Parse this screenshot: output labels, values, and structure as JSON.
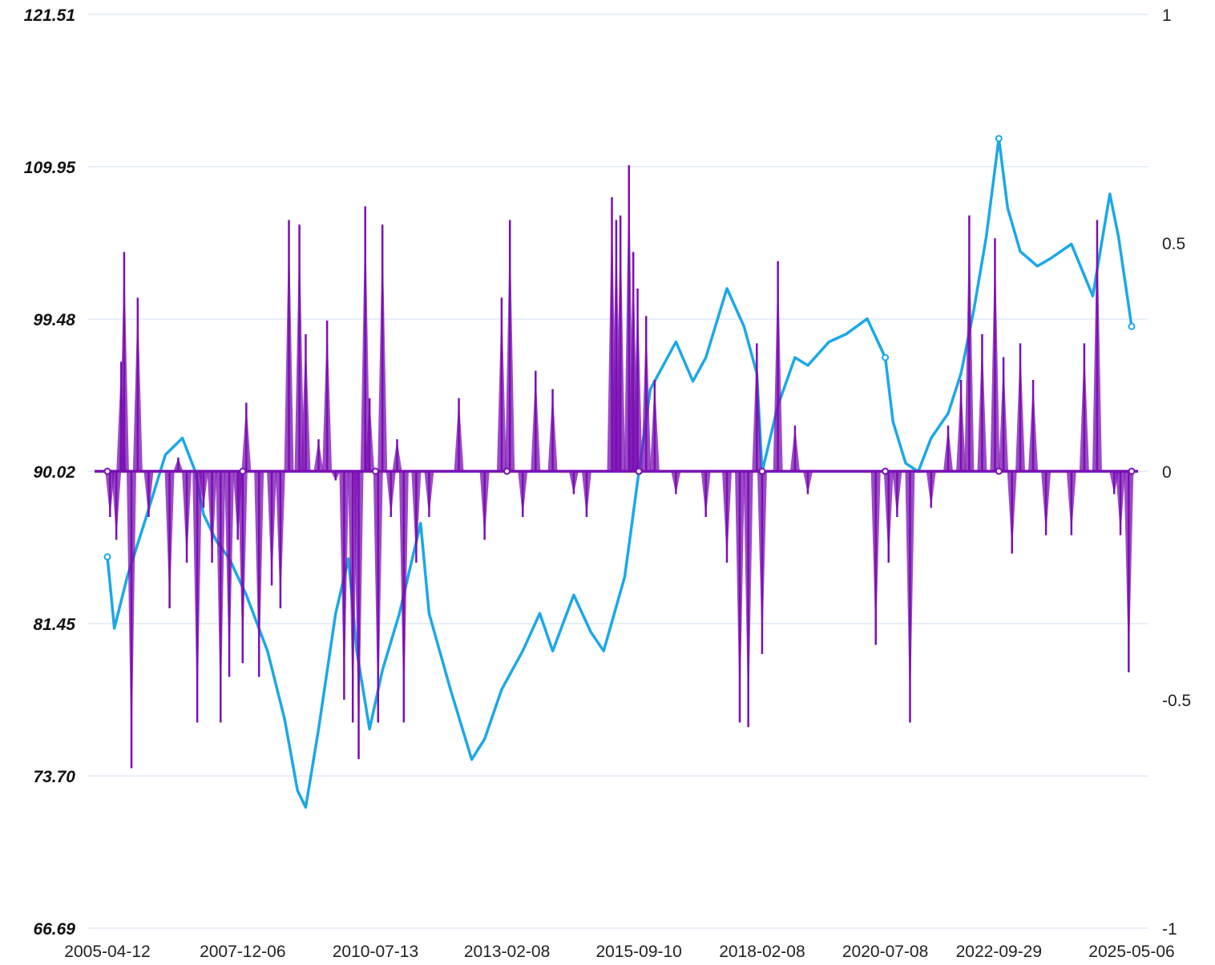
{
  "chart_data": {
    "type": "line",
    "title": "",
    "xlabel": "",
    "ylabel": "",
    "left_axis": {
      "ticks": [
        "121.51",
        "109.95",
        "99.48",
        "90.02",
        "81.45",
        "73.70",
        "66.69"
      ],
      "tick_values": [
        121.51,
        109.95,
        99.48,
        90.02,
        81.45,
        73.7,
        66.69
      ],
      "ylim": [
        66.69,
        121.51
      ],
      "scale": "log"
    },
    "right_axis": {
      "ticks": [
        "1",
        "0.5",
        "0",
        "-0.5",
        "-1"
      ],
      "tick_values": [
        1,
        0.5,
        0,
        -0.5,
        -1
      ],
      "ylim": [
        -1,
        1
      ]
    },
    "x_axis": {
      "ticks": [
        "2005-04-12",
        "2007-12-06",
        "2010-07-13",
        "2013-02-08",
        "2015-09-10",
        "2018-02-08",
        "2020-07-08",
        "2022-09-29",
        "2025-05-06"
      ],
      "range": [
        "2005-04-12",
        "2025-05-06"
      ]
    },
    "grid": true,
    "legend": "none",
    "series": [
      {
        "axis": "left",
        "style": "line",
        "color": "#1ba8e8",
        "points": [
          [
            "2005-04-12",
            85.1
          ],
          [
            "2005-06-01",
            81.2
          ],
          [
            "2005-09-01",
            84.0
          ],
          [
            "2006-01-01",
            87.0
          ],
          [
            "2006-06-01",
            91.0
          ],
          [
            "2006-10-01",
            92.0
          ],
          [
            "2007-01-01",
            90.0
          ],
          [
            "2007-03-01",
            87.5
          ],
          [
            "2007-06-01",
            86.0
          ],
          [
            "2007-09-01",
            85.0
          ],
          [
            "2008-01-01",
            83.0
          ],
          [
            "2008-06-01",
            80.0
          ],
          [
            "2008-10-01",
            76.5
          ],
          [
            "2009-01-01",
            73.0
          ],
          [
            "2009-03-01",
            72.2
          ],
          [
            "2009-06-01",
            76.0
          ],
          [
            "2009-10-01",
            82.0
          ],
          [
            "2010-01-01",
            85.0
          ],
          [
            "2010-03-01",
            80.0
          ],
          [
            "2010-06-01",
            76.0
          ],
          [
            "2010-09-01",
            79.0
          ],
          [
            "2011-01-01",
            82.0
          ],
          [
            "2011-06-01",
            87.0
          ],
          [
            "2011-08-01",
            82.0
          ],
          [
            "2012-01-01",
            78.0
          ],
          [
            "2012-06-01",
            74.5
          ],
          [
            "2012-09-01",
            75.5
          ],
          [
            "2013-01-01",
            78.0
          ],
          [
            "2013-06-01",
            80.0
          ],
          [
            "2013-10-01",
            82.0
          ],
          [
            "2014-01-01",
            80.0
          ],
          [
            "2014-06-01",
            83.0
          ],
          [
            "2014-10-01",
            81.0
          ],
          [
            "2015-01-01",
            80.0
          ],
          [
            "2015-06-01",
            84.0
          ],
          [
            "2015-09-10",
            90.0
          ],
          [
            "2015-12-01",
            95.0
          ],
          [
            "2016-06-01",
            98.0
          ],
          [
            "2016-10-01",
            95.5
          ],
          [
            "2017-01-01",
            97.0
          ],
          [
            "2017-06-01",
            101.5
          ],
          [
            "2017-10-01",
            99.0
          ],
          [
            "2018-01-01",
            96.0
          ],
          [
            "2018-02-08",
            90.0
          ],
          [
            "2018-06-01",
            94.0
          ],
          [
            "2018-10-01",
            97.0
          ],
          [
            "2019-01-01",
            96.5
          ],
          [
            "2019-06-01",
            98.0
          ],
          [
            "2019-10-01",
            98.5
          ],
          [
            "2020-03-01",
            99.5
          ],
          [
            "2020-07-08",
            97.0
          ],
          [
            "2020-09-01",
            93.0
          ],
          [
            "2020-12-01",
            90.5
          ],
          [
            "2021-03-01",
            90.0
          ],
          [
            "2021-06-01",
            92.0
          ],
          [
            "2021-10-01",
            93.5
          ],
          [
            "2022-01-01",
            96.0
          ],
          [
            "2022-04-01",
            100.0
          ],
          [
            "2022-07-01",
            105.0
          ],
          [
            "2022-09-29",
            112.0
          ],
          [
            "2022-12-01",
            107.0
          ],
          [
            "2023-03-01",
            104.0
          ],
          [
            "2023-07-01",
            103.0
          ],
          [
            "2023-10-01",
            103.5
          ],
          [
            "2024-03-01",
            104.5
          ],
          [
            "2024-08-01",
            101.0
          ],
          [
            "2024-12-01",
            108.0
          ],
          [
            "2025-02-01",
            105.0
          ],
          [
            "2025-05-06",
            99.0
          ]
        ]
      },
      {
        "axis": "right",
        "style": "filled-bars",
        "color": "#7a0fb3",
        "points": [
          [
            "2005-05-01",
            -0.1
          ],
          [
            "2005-06-15",
            -0.15
          ],
          [
            "2005-07-20",
            0.24
          ],
          [
            "2005-08-10",
            0.48
          ],
          [
            "2005-10-01",
            -0.65
          ],
          [
            "2005-11-15",
            0.38
          ],
          [
            "2006-02-01",
            -0.1
          ],
          [
            "2006-07-01",
            -0.3
          ],
          [
            "2006-09-01",
            0.03
          ],
          [
            "2006-11-01",
            -0.2
          ],
          [
            "2007-01-15",
            -0.55
          ],
          [
            "2007-03-01",
            -0.08
          ],
          [
            "2007-05-01",
            -0.2
          ],
          [
            "2007-07-01",
            -0.55
          ],
          [
            "2007-09-01",
            -0.45
          ],
          [
            "2007-11-01",
            -0.15
          ],
          [
            "2007-12-06",
            -0.42
          ],
          [
            "2008-01-01",
            0.15
          ],
          [
            "2008-04-01",
            -0.45
          ],
          [
            "2008-07-01",
            -0.25
          ],
          [
            "2008-09-01",
            -0.3
          ],
          [
            "2008-11-01",
            0.55
          ],
          [
            "2009-01-15",
            0.54
          ],
          [
            "2009-03-01",
            0.3
          ],
          [
            "2009-06-01",
            0.07
          ],
          [
            "2009-08-01",
            0.33
          ],
          [
            "2009-10-01",
            -0.02
          ],
          [
            "2009-12-01",
            -0.5
          ],
          [
            "2010-02-01",
            -0.55
          ],
          [
            "2010-03-15",
            -0.63
          ],
          [
            "2010-05-01",
            0.58
          ],
          [
            "2010-06-01",
            0.16
          ],
          [
            "2010-08-01",
            -0.55
          ],
          [
            "2010-09-01",
            0.54
          ],
          [
            "2010-11-01",
            -0.1
          ],
          [
            "2010-12-15",
            0.07
          ],
          [
            "2011-02-01",
            -0.55
          ],
          [
            "2011-05-01",
            -0.2
          ],
          [
            "2011-08-01",
            -0.1
          ],
          [
            "2012-03-01",
            0.16
          ],
          [
            "2012-09-01",
            -0.15
          ],
          [
            "2013-01-01",
            0.38
          ],
          [
            "2013-03-01",
            0.55
          ],
          [
            "2013-06-01",
            -0.1
          ],
          [
            "2013-09-01",
            0.22
          ],
          [
            "2014-01-01",
            0.18
          ],
          [
            "2014-06-01",
            -0.05
          ],
          [
            "2014-09-01",
            -0.1
          ],
          [
            "2015-03-01",
            0.6
          ],
          [
            "2015-04-01",
            0.55
          ],
          [
            "2015-05-01",
            0.56
          ],
          [
            "2015-07-01",
            0.67
          ],
          [
            "2015-08-01",
            0.48
          ],
          [
            "2015-09-01",
            0.4
          ],
          [
            "2015-11-01",
            0.34
          ],
          [
            "2016-01-01",
            0.2
          ],
          [
            "2016-06-01",
            -0.05
          ],
          [
            "2017-01-01",
            -0.1
          ],
          [
            "2017-06-01",
            -0.2
          ],
          [
            "2017-09-01",
            -0.55
          ],
          [
            "2017-11-01",
            -0.56
          ],
          [
            "2018-01-01",
            0.28
          ],
          [
            "2018-02-08",
            -0.4
          ],
          [
            "2018-06-01",
            0.46
          ],
          [
            "2018-10-01",
            0.1
          ],
          [
            "2019-01-01",
            -0.05
          ],
          [
            "2020-05-01",
            -0.38
          ],
          [
            "2020-08-01",
            -0.2
          ],
          [
            "2020-10-01",
            -0.1
          ],
          [
            "2021-01-01",
            -0.55
          ],
          [
            "2021-06-01",
            -0.08
          ],
          [
            "2021-10-01",
            0.1
          ],
          [
            "2022-01-01",
            0.2
          ],
          [
            "2022-03-01",
            0.56
          ],
          [
            "2022-06-01",
            0.3
          ],
          [
            "2022-09-01",
            0.51
          ],
          [
            "2022-11-01",
            0.25
          ],
          [
            "2023-01-01",
            -0.18
          ],
          [
            "2023-03-01",
            0.28
          ],
          [
            "2023-06-01",
            0.2
          ],
          [
            "2023-09-01",
            -0.14
          ],
          [
            "2024-03-01",
            -0.14
          ],
          [
            "2024-06-01",
            0.28
          ],
          [
            "2024-09-01",
            0.55
          ],
          [
            "2025-01-01",
            -0.05
          ],
          [
            "2025-02-15",
            -0.14
          ],
          [
            "2025-04-15",
            -0.44
          ]
        ]
      }
    ]
  }
}
